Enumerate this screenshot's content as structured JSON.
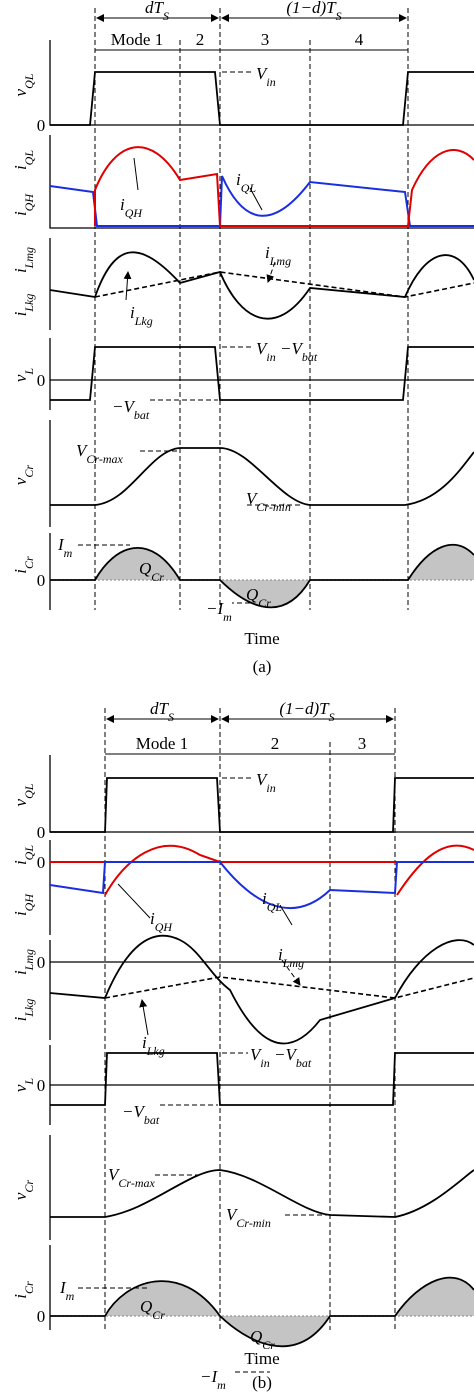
{
  "figure_a": {
    "intervals": [
      [
        {
          "t": "dT"
        },
        {
          "t": "S",
          "sub": true
        }
      ],
      [
        {
          "t": "(1−d)T"
        },
        {
          "t": "S",
          "sub": true
        }
      ]
    ],
    "modes": [
      "Mode 1",
      "2",
      "3",
      "4"
    ],
    "axis_labels": [
      [
        {
          "t": "v"
        },
        {
          "t": "QL",
          "sub": true
        }
      ],
      [
        {
          "t": "i"
        },
        {
          "t": "QL",
          "sub": true
        }
      ],
      [
        {
          "t": "i"
        },
        {
          "t": "QH",
          "sub": true
        }
      ],
      [
        {
          "t": "i"
        },
        {
          "t": "Lmg",
          "sub": true
        }
      ],
      [
        {
          "t": "i"
        },
        {
          "t": "Lkg",
          "sub": true
        }
      ],
      [
        {
          "t": "v"
        },
        {
          "t": "L",
          "sub": true
        }
      ],
      [
        {
          "t": "v"
        },
        {
          "t": "Cr",
          "sub": true
        }
      ],
      [
        {
          "t": "i"
        },
        {
          "t": "Cr",
          "sub": true
        }
      ]
    ],
    "zeros": [
      "0",
      "0",
      "0"
    ],
    "annotations": [
      [
        {
          "t": "V"
        },
        {
          "t": "in",
          "sub": true
        }
      ],
      [
        {
          "t": "i"
        },
        {
          "t": "QH",
          "sub": true
        }
      ],
      [
        {
          "t": "i"
        },
        {
          "t": "QL",
          "sub": true
        }
      ],
      [
        {
          "t": "i"
        },
        {
          "t": "Lmg",
          "sub": true
        }
      ],
      [
        {
          "t": "i"
        },
        {
          "t": "Lkg",
          "sub": true
        }
      ],
      [
        {
          "t": "V"
        },
        {
          "t": "in",
          "sub": true
        },
        {
          "t": " −V"
        },
        {
          "t": "bat",
          "sub": true
        }
      ],
      [
        {
          "t": "−V"
        },
        {
          "t": "bat",
          "sub": true
        }
      ],
      [
        {
          "t": "V"
        },
        {
          "t": "Cr-max",
          "sub": true
        }
      ],
      [
        {
          "t": "V"
        },
        {
          "t": "Cr-min",
          "sub": true
        }
      ],
      [
        {
          "t": "I"
        },
        {
          "t": "m",
          "sub": true
        }
      ],
      [
        {
          "t": "Q"
        },
        {
          "t": "Cr",
          "sub": true
        }
      ],
      [
        {
          "t": "−I"
        },
        {
          "t": "m",
          "sub": true
        }
      ],
      [
        {
          "t": "Q"
        },
        {
          "t": "Cr",
          "sub": true
        }
      ]
    ],
    "x_label": "Time",
    "caption": "(a)"
  },
  "figure_b": {
    "intervals": [
      [
        {
          "t": "dT"
        },
        {
          "t": "S",
          "sub": true
        }
      ],
      [
        {
          "t": "(1−d)T"
        },
        {
          "t": "S",
          "sub": true
        }
      ]
    ],
    "modes": [
      "Mode 1",
      "2",
      "3"
    ],
    "axis_labels": [
      [
        {
          "t": "v"
        },
        {
          "t": "QL",
          "sub": true
        }
      ],
      [
        {
          "t": "i"
        },
        {
          "t": "QL",
          "sub": true
        }
      ],
      [
        {
          "t": "i"
        },
        {
          "t": "QH",
          "sub": true
        }
      ],
      [
        {
          "t": "i"
        },
        {
          "t": "Lmg",
          "sub": true
        }
      ],
      [
        {
          "t": "i"
        },
        {
          "t": "Lkg",
          "sub": true
        }
      ],
      [
        {
          "t": "v"
        },
        {
          "t": "L",
          "sub": true
        }
      ],
      [
        {
          "t": "v"
        },
        {
          "t": "Cr",
          "sub": true
        }
      ],
      [
        {
          "t": "i"
        },
        {
          "t": "Cr",
          "sub": true
        }
      ]
    ],
    "zeros": [
      "0",
      "0",
      "0",
      "0",
      "0"
    ],
    "annotations": [
      [
        {
          "t": "V"
        },
        {
          "t": "in",
          "sub": true
        }
      ],
      [
        {
          "t": "i"
        },
        {
          "t": "QH",
          "sub": true
        }
      ],
      [
        {
          "t": "i"
        },
        {
          "t": "QL",
          "sub": true
        }
      ],
      [
        {
          "t": "i"
        },
        {
          "t": "Lmg",
          "sub": true
        }
      ],
      [
        {
          "t": "i"
        },
        {
          "t": "Lkg",
          "sub": true
        }
      ],
      [
        {
          "t": "V"
        },
        {
          "t": "in",
          "sub": true
        },
        {
          "t": " −V"
        },
        {
          "t": "bat",
          "sub": true
        }
      ],
      [
        {
          "t": "−V"
        },
        {
          "t": "bat",
          "sub": true
        }
      ],
      [
        {
          "t": "V"
        },
        {
          "t": "Cr-max",
          "sub": true
        }
      ],
      [
        {
          "t": "V"
        },
        {
          "t": "Cr-min",
          "sub": true
        }
      ],
      [
        {
          "t": "I"
        },
        {
          "t": "m",
          "sub": true
        }
      ],
      [
        {
          "t": "Q"
        },
        {
          "t": "Cr",
          "sub": true
        }
      ],
      [
        {
          "t": "−I"
        },
        {
          "t": "m",
          "sub": true
        }
      ],
      [
        {
          "t": "Q"
        },
        {
          "t": "Cr",
          "sub": true
        }
      ]
    ],
    "x_label": "Time",
    "caption": "(b)"
  }
}
